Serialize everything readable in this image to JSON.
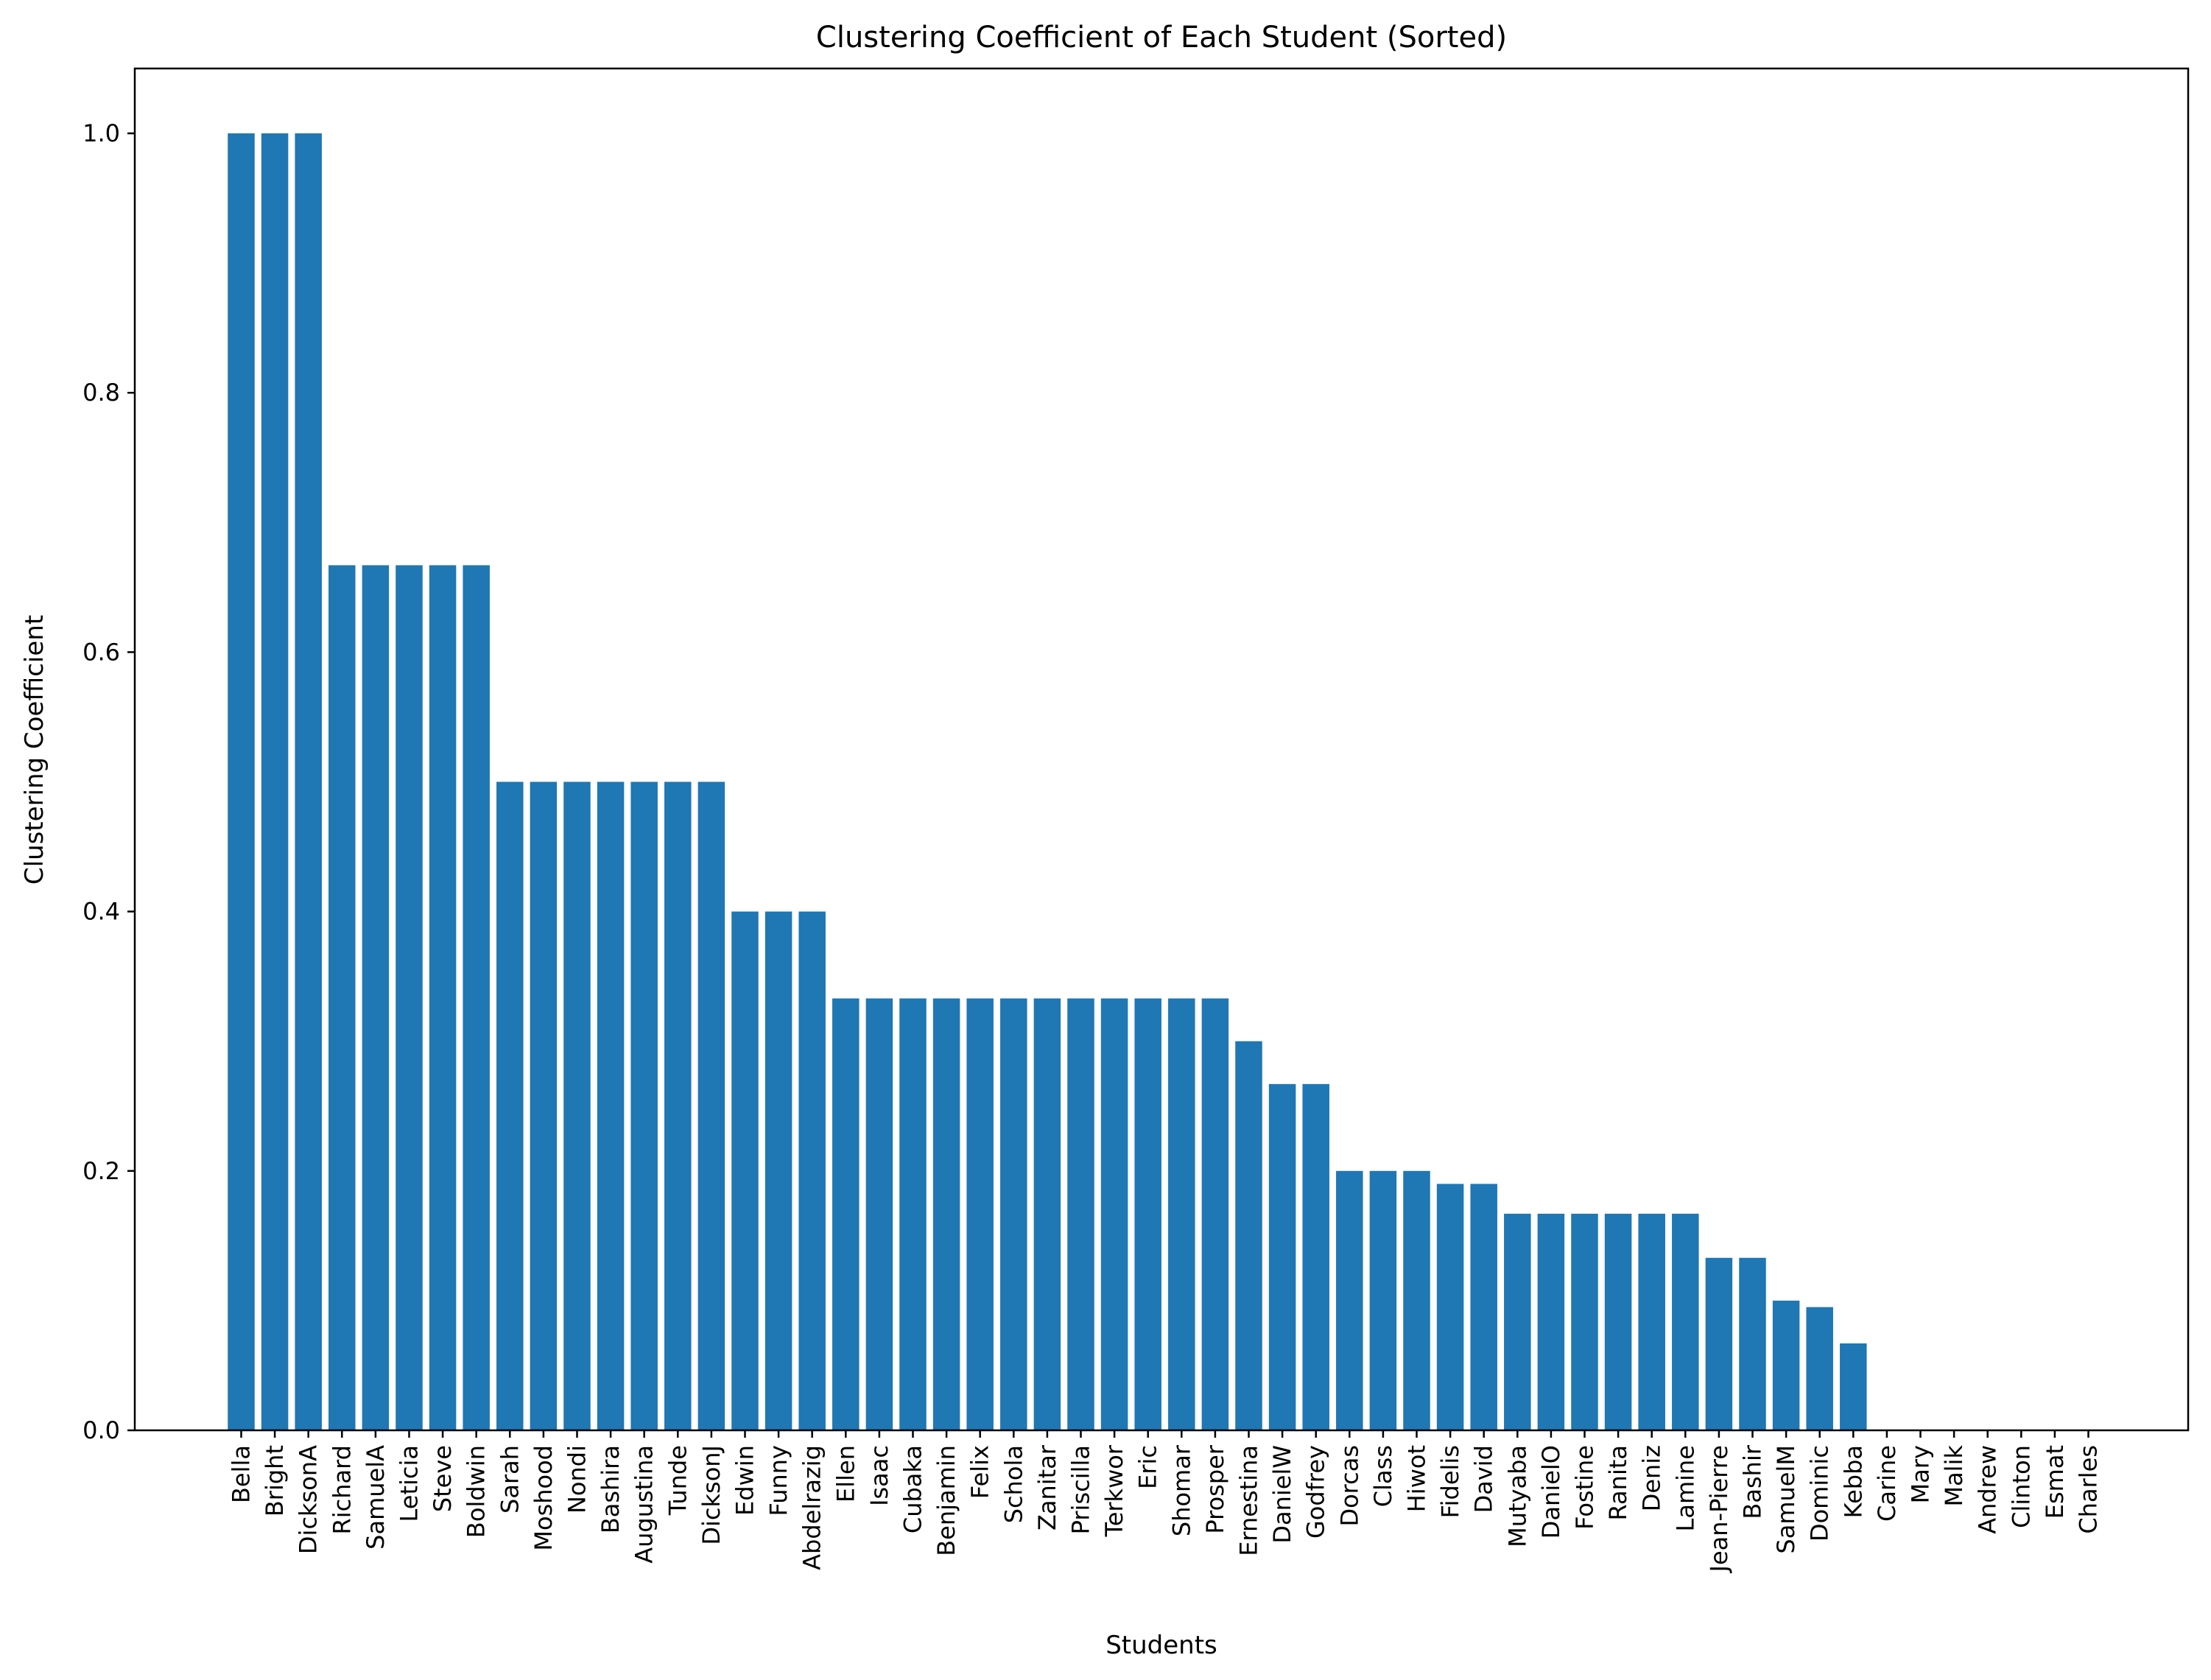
{
  "chart_data": {
    "type": "bar",
    "title": "Clustering Coefficient of Each Student (Sorted)",
    "xlabel": "Students",
    "ylabel": "Clustering Coefficient",
    "ylim": [
      0,
      1.05
    ],
    "yticks": [
      "0.0",
      "0.2",
      "0.4",
      "0.6",
      "0.8",
      "1.0"
    ],
    "grid": false,
    "bar_color": "#1f77b4",
    "categories": [
      "Bella",
      "Bright",
      "DicksonA",
      "Richard",
      "SamuelA",
      "Leticia",
      "Steve",
      "Boldwin",
      "Sarah",
      "Moshood",
      "Nondi",
      "Bashira",
      "Augustina",
      "Tunde",
      "DicksonJ",
      "Edwin",
      "Funny",
      "Abdelrazig",
      "Ellen",
      "Isaac",
      "Cubaka",
      "Benjamin",
      "Felix",
      "Schola",
      "Zanitar",
      "Priscilla",
      "Terkwor",
      "Eric",
      "Shomar",
      "Prosper",
      "Ernestina",
      "DanielW",
      "Godfrey",
      "Dorcas",
      "Class",
      "Hiwot",
      "Fidelis",
      "David",
      "Mutyaba",
      "DanielO",
      "Fostine",
      "Ranita",
      "Deniz",
      "Lamine",
      "Jean-Pierre",
      "Bashir",
      "SamuelM",
      "Dominic",
      "Kebba",
      "Carine",
      "Mary",
      "Malik",
      "Andrew",
      "Clinton",
      "Esmat",
      "Charles"
    ],
    "values": [
      1.0,
      1.0,
      1.0,
      0.667,
      0.667,
      0.667,
      0.667,
      0.667,
      0.5,
      0.5,
      0.5,
      0.5,
      0.5,
      0.5,
      0.5,
      0.4,
      0.4,
      0.4,
      0.333,
      0.333,
      0.333,
      0.333,
      0.333,
      0.333,
      0.333,
      0.333,
      0.333,
      0.333,
      0.333,
      0.333,
      0.3,
      0.267,
      0.267,
      0.2,
      0.2,
      0.2,
      0.19,
      0.19,
      0.167,
      0.167,
      0.167,
      0.167,
      0.167,
      0.167,
      0.133,
      0.133,
      0.1,
      0.095,
      0.067,
      0.0,
      0.0,
      0.0,
      0.0,
      0.0,
      0.0,
      0.0
    ]
  }
}
